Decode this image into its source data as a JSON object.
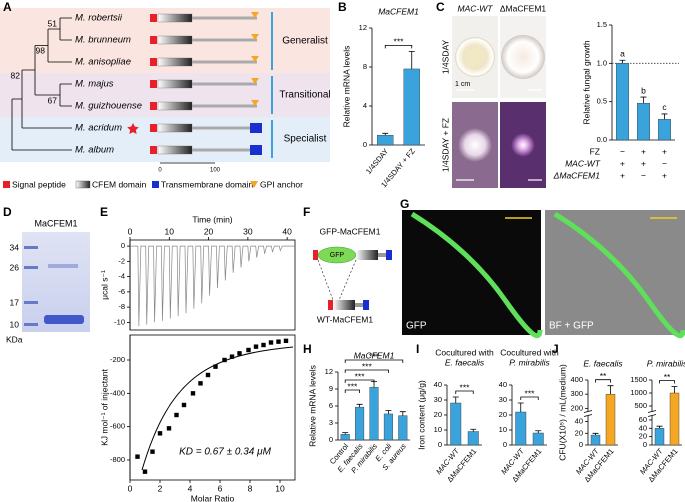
{
  "panel_labels": [
    "A",
    "B",
    "C",
    "D",
    "E",
    "F",
    "G",
    "H",
    "I",
    "J"
  ],
  "tree": {
    "species": [
      "M. robertsii",
      "M. brunneum",
      "M. anisopliae",
      "M. majus",
      "M. guizhouense",
      "M. acridum",
      "M. album"
    ],
    "bootstrap": [
      "51",
      "98",
      "67",
      "82"
    ],
    "groups": [
      "Generalist",
      "Transitional",
      "Specialist"
    ],
    "scale": [
      "0",
      "100"
    ],
    "legend": [
      "Signal peptide",
      "CFEM domain",
      "Transmembrane domain",
      "GPI anchor"
    ]
  },
  "plates": {
    "columns": [
      "MAC-WT",
      "ΔMaCFEM1"
    ],
    "rows": [
      "1/4SDAY",
      "1/4SDAY + FZ"
    ],
    "scale_bar": "1 cm"
  },
  "gel": {
    "title": "MaCFEM1",
    "markers": [
      "34",
      "26",
      "17",
      "10"
    ],
    "unit": "KDa"
  },
  "construct": {
    "top": "GFP-MaCFEM1",
    "gfp": "GFP",
    "bottom": "WT-MaCFEM1"
  },
  "micrographs": {
    "labels": [
      "GFP",
      "BF + GFP"
    ]
  },
  "chart_data": [
    {
      "type": "bar",
      "title": "MaCFEM1",
      "ylabel": "Relative mRNA levels",
      "categories": [
        "1/4SDAY",
        "1/4SDAY + FZ"
      ],
      "values": [
        1,
        7.8
      ],
      "errors": [
        0.2,
        1.8
      ],
      "colors": [
        "#3ba3dc",
        "#3ba3dc"
      ],
      "ylim": [
        0,
        12
      ],
      "yticks": [
        0,
        4,
        8,
        12
      ],
      "significance": [
        "***"
      ]
    },
    {
      "type": "bar",
      "ylabel": "Relative fungal growth",
      "values": [
        1.0,
        0.48,
        0.27
      ],
      "errors": [
        0.04,
        0.08,
        0.07
      ],
      "colors": [
        "#3ba3dc",
        "#3ba3dc",
        "#3ba3dc"
      ],
      "ylim": [
        0,
        1.5
      ],
      "yticks": [
        {
          "value": 0,
          "label": "0.0"
        },
        {
          "value": 0.5,
          "label": "0.5"
        },
        {
          "value": 1,
          "label": "1.0"
        },
        {
          "value": 1.5,
          "label": "1.5"
        }
      ],
      "value_labels": [
        "a",
        "b",
        "c"
      ],
      "reference_line": 1,
      "rows": [
        {
          "label": "FZ",
          "marks": [
            "−",
            "+",
            "+"
          ]
        },
        {
          "label": "MAC-WT",
          "marks": [
            "+",
            "+",
            "−"
          ]
        },
        {
          "label": "ΔMaCFEM1",
          "marks": [
            "+",
            "−",
            "+"
          ]
        }
      ]
    },
    {
      "type": "line",
      "xlabel": "Time (min)",
      "ylabel": "μcal s⁻¹",
      "x": [
        2,
        4,
        6,
        8,
        10,
        12,
        14,
        16,
        18,
        20,
        22,
        24,
        26,
        28,
        30,
        32,
        34,
        36,
        38
      ],
      "values": [
        -10.5,
        -10.3,
        -10,
        -9.8,
        -9.5,
        -9.2,
        -8.8,
        -8.2,
        -7.5,
        -6.5,
        -5.5,
        -4.5,
        -3.5,
        -2.8,
        -2,
        -1.5,
        -1,
        -0.8,
        -0.6
      ],
      "xlim": [
        0,
        42
      ],
      "xticks": [
        0,
        10,
        20,
        30,
        40
      ],
      "ylim": [
        -11,
        0.8
      ],
      "yticks": [
        0,
        -2,
        -4,
        -6,
        -8,
        -10
      ],
      "color": "#888888"
    },
    {
      "type": "scatter",
      "xlabel": "Molar Ratio",
      "ylabel": "KJ mol⁻¹ of injectant",
      "annotation": "KD = 0.67 ± 0.34 μM",
      "x": [
        0.5,
        1,
        1.5,
        2,
        2.6,
        3.1,
        3.6,
        4.2,
        4.7,
        5.2,
        5.7,
        6.3,
        6.8,
        7.3,
        7.9,
        8.4,
        8.9,
        9.4,
        9.9,
        10.4
      ],
      "values": [
        -780,
        -870,
        -750,
        -640,
        -610,
        -530,
        -470,
        -400,
        -340,
        -290,
        -240,
        -200,
        -180,
        -160,
        -140,
        -120,
        -110,
        -95,
        -90,
        -85
      ],
      "xlim": [
        0,
        11
      ],
      "xticks": [
        0,
        2,
        4,
        6,
        8,
        10
      ],
      "ylim": [
        -920,
        -50
      ],
      "yticks": [
        -200,
        -400,
        -600,
        -800
      ],
      "color": "#000000"
    },
    {
      "type": "bar",
      "title": "MaCFEM1",
      "ylabel": "Relative mRNA levels",
      "categories": [
        "Control",
        "E. faecalis",
        "P. mirabilis",
        "E. coli",
        "S. aureus"
      ],
      "values": [
        1,
        5.8,
        9.3,
        4.6,
        4.3
      ],
      "errors": [
        0.3,
        0.5,
        1,
        0.6,
        0.7
      ],
      "colors": [
        "#3ba3dc",
        "#3ba3dc",
        "#3ba3dc",
        "#3ba3dc",
        "#3ba3dc"
      ],
      "ylim": [
        0,
        12
      ],
      "yticks": [
        0,
        3,
        6,
        9,
        12
      ],
      "significance": [
        "***",
        "***",
        "***",
        "***"
      ]
    },
    {
      "type": "bar",
      "title": [
        "Cocultured with",
        "E. faecalis"
      ],
      "ylabel": "Iron content (μg/g)",
      "categories": [
        "MAC-WT",
        "ΔMaCFEM1"
      ],
      "values": [
        28,
        9
      ],
      "errors": [
        4,
        1.5
      ],
      "colors": [
        "#3ba3dc",
        "#3ba3dc"
      ],
      "ylim": [
        0,
        40
      ],
      "yticks": [
        0,
        10,
        20,
        30,
        40
      ],
      "significance": [
        "***"
      ]
    },
    {
      "type": "bar",
      "title": [
        "Cocultured with",
        "P. mirabilis"
      ],
      "categories": [
        "MAC-WT",
        "ΔMaCFEM1"
      ],
      "values": [
        22,
        8
      ],
      "errors": [
        6,
        1.5
      ],
      "colors": [
        "#3ba3dc",
        "#3ba3dc"
      ],
      "ylim": [
        0,
        40
      ],
      "yticks": [
        0,
        10,
        20,
        30,
        40
      ],
      "significance": [
        "***"
      ]
    },
    {
      "type": "bar",
      "title": "E. faecalis",
      "ylabel": "CFU(X10⁵) / mL(medium)",
      "categories": [
        "MAC-WT",
        "ΔMaCFEM1"
      ],
      "values": [
        17,
        300
      ],
      "errors": [
        3,
        60
      ],
      "colors": [
        "#3ba3dc",
        "#f5a623"
      ],
      "ylim": [
        0,
        400
      ],
      "ybreak": [
        50,
        180
      ],
      "yticks": [
        0,
        20,
        40,
        200,
        300,
        400
      ],
      "significance": [
        "**"
      ]
    },
    {
      "type": "bar",
      "title": "P. mirabilis",
      "categories": [
        "MAC-WT",
        "ΔMaCFEM1"
      ],
      "values": [
        40,
        1000
      ],
      "errors": [
        5,
        250
      ],
      "colors": [
        "#3ba3dc",
        "#f5a623"
      ],
      "ylim": [
        0,
        1500
      ],
      "ybreak": [
        70,
        300
      ],
      "yticks": [
        0,
        20,
        40,
        60,
        500,
        1000,
        1500
      ],
      "significance": [
        "**"
      ]
    }
  ]
}
